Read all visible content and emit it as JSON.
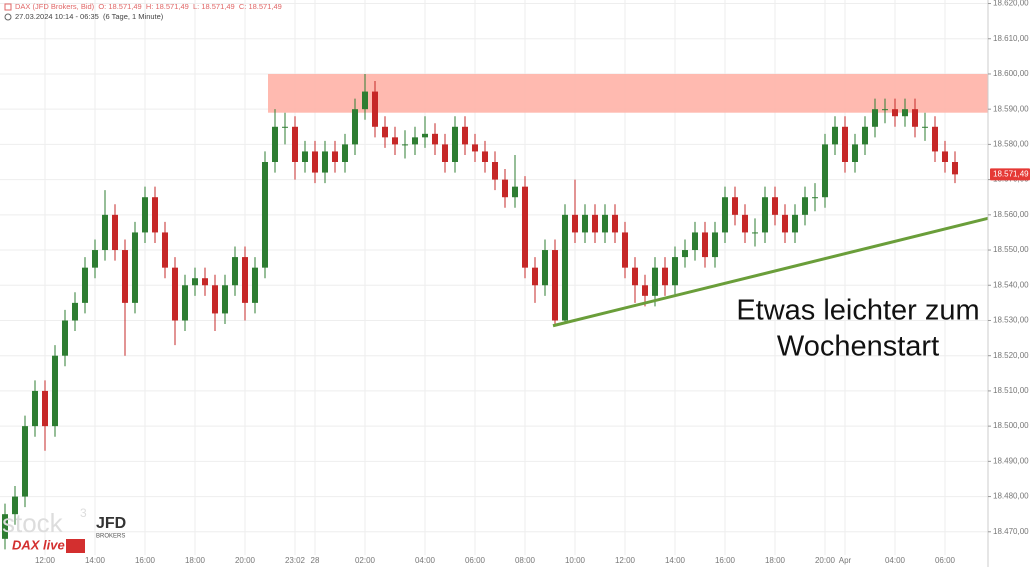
{
  "chart_data": {
    "type": "candlestick",
    "header": {
      "line1": "DAX (JFD Brokers, Bid)  O: 18.571,49  H: 18.571,49  L: 18.571,49  C: 18.571,49",
      "line2": "27.03.2024 10:14 - 06:35  (6 Tage, 1 Minute)"
    },
    "annotation": [
      "Etwas leichter zum",
      "Wochenstart"
    ],
    "logo": {
      "stock": "stock",
      "sup": "3",
      "jfd": "JFD",
      "brokers": "BROKERS",
      "dax_live": "DAX live"
    },
    "last_price": {
      "value": 18571.49,
      "label": "18.571,49"
    },
    "up_color": "#2e7d32",
    "down_color": "#c62828",
    "zone": {
      "from": 18589,
      "to": 18600,
      "start": 26.3,
      "color": "#ffb3a7"
    },
    "trendline": {
      "x": [
        54.8,
        98.3
      ],
      "y": [
        18528.5,
        18559
      ],
      "color": "#6a9e3a"
    },
    "categories": [
      null,
      null,
      null,
      null,
      "12:00",
      null,
      null,
      null,
      null,
      "14:00",
      null,
      null,
      null,
      null,
      "16:00",
      null,
      null,
      null,
      null,
      "18:00",
      null,
      null,
      null,
      null,
      "20:00",
      null,
      null,
      null,
      null,
      "23:02",
      null,
      "28",
      null,
      null,
      null,
      null,
      "02:00",
      null,
      null,
      null,
      null,
      null,
      "04:00",
      null,
      null,
      null,
      null,
      "06:00",
      null,
      null,
      null,
      null,
      "08:00",
      null,
      null,
      null,
      null,
      "10:00",
      null,
      null,
      null,
      null,
      "12:00",
      null,
      null,
      null,
      null,
      "14:00",
      null,
      null,
      null,
      null,
      "16:00",
      null,
      null,
      null,
      null,
      "18:00",
      null,
      null,
      null,
      null,
      "20:00",
      null,
      "Apr",
      null,
      null,
      null,
      null,
      "04:00",
      null,
      null,
      null,
      null,
      "06:00",
      null
    ],
    "open": [
      18468,
      18475,
      18480,
      18500,
      18510,
      18500,
      18520,
      18530,
      18535,
      18545,
      18550,
      18560,
      18550,
      18535,
      18555,
      18565,
      18555,
      18545,
      18530,
      18540,
      18542,
      18540,
      18532,
      18540,
      18548,
      18535,
      18545,
      18575,
      18585,
      18585,
      18575,
      18578,
      18572,
      18578,
      18575,
      18580,
      18590,
      18595,
      18585,
      18582,
      18580,
      18580,
      18582,
      18583,
      18580,
      18575,
      18585,
      18580,
      18578,
      18575,
      18570,
      18565,
      18568,
      18545,
      18540,
      18550,
      18530,
      18560,
      18555,
      18560,
      18555,
      18560,
      18555,
      18545,
      18540,
      18537,
      18545,
      18540,
      18548,
      18550,
      18555,
      18548,
      18555,
      18565,
      18560,
      18555,
      18555,
      18565,
      18560,
      18555,
      18560,
      18565,
      18565,
      18580,
      18585,
      18575,
      18580,
      18585,
      18590,
      18590,
      18588,
      18590,
      18585,
      18585,
      18578,
      18575
    ],
    "high": [
      18478,
      18483,
      18503,
      18513,
      18513,
      18523,
      18533,
      18538,
      18548,
      18553,
      18567,
      18563,
      18553,
      18558,
      18568,
      18568,
      18558,
      18548,
      18543,
      18545,
      18545,
      18543,
      18543,
      18551,
      18551,
      18548,
      18578,
      18590,
      18589,
      18588,
      18581,
      18581,
      18581,
      18581,
      18583,
      18593,
      18600,
      18598,
      18588,
      18585,
      18584,
      18585,
      18588,
      18586,
      18583,
      18588,
      18588,
      18583,
      18581,
      18578,
      18573,
      18577,
      18571,
      18548,
      18553,
      18553,
      18563,
      18570,
      18563,
      18563,
      18563,
      18563,
      18558,
      18548,
      18543,
      18548,
      18548,
      18551,
      18553,
      18558,
      18558,
      18558,
      18568,
      18568,
      18563,
      18559,
      18568,
      18568,
      18563,
      18563,
      18568,
      18569,
      18583,
      18588,
      18588,
      18583,
      18588,
      18593,
      18593,
      18593,
      18593,
      18593,
      18589,
      18588,
      18581,
      18578
    ],
    "low": [
      18465,
      18472,
      18477,
      18497,
      18493,
      18497,
      18517,
      18527,
      18532,
      18542,
      18547,
      18547,
      18520,
      18532,
      18552,
      18552,
      18542,
      18523,
      18527,
      18537,
      18537,
      18527,
      18529,
      18537,
      18530,
      18532,
      18542,
      18572,
      18580,
      18570,
      18572,
      18569,
      18569,
      18572,
      18572,
      18577,
      18587,
      18582,
      18579,
      18577,
      18576,
      18577,
      18579,
      18577,
      18572,
      18572,
      18577,
      18575,
      18572,
      18567,
      18562,
      18562,
      18542,
      18535,
      18537,
      18528.5,
      18529,
      18552,
      18552,
      18552,
      18552,
      18552,
      18542,
      18535,
      18534,
      18534,
      18537,
      18537,
      18545,
      18547,
      18545,
      18545,
      18552,
      18557,
      18552,
      18551,
      18552,
      18557,
      18552,
      18552,
      18557,
      18561,
      18562,
      18577,
      18572,
      18572,
      18577,
      18582,
      18586,
      18585,
      18585,
      18582,
      18581,
      18575,
      18572,
      18569
    ],
    "close": [
      18475,
      18480,
      18500,
      18510,
      18500,
      18520,
      18530,
      18535,
      18545,
      18550,
      18560,
      18550,
      18535,
      18555,
      18565,
      18555,
      18545,
      18530,
      18540,
      18542,
      18540,
      18532,
      18540,
      18548,
      18535,
      18545,
      18575,
      18585,
      18585,
      18575,
      18578,
      18572,
      18578,
      18575,
      18580,
      18590,
      18595,
      18585,
      18582,
      18580,
      18580,
      18582,
      18583,
      18580,
      18575,
      18585,
      18580,
      18578,
      18575,
      18570,
      18565,
      18568,
      18545,
      18540,
      18550,
      18530,
      18560,
      18555,
      18560,
      18555,
      18560,
      18555,
      18545,
      18540,
      18537,
      18545,
      18540,
      18548,
      18550,
      18555,
      18548,
      18555,
      18565,
      18560,
      18555,
      18555,
      18565,
      18560,
      18555,
      18560,
      18565,
      18565,
      18580,
      18585,
      18575,
      18580,
      18585,
      18590,
      18590,
      18588,
      18590,
      18585,
      18585,
      18578,
      18575,
      18571.49
    ],
    "ylim": [
      18460,
      18621
    ],
    "yticks": [
      {
        "value": 18470,
        "label": "18.470,00"
      },
      {
        "value": 18480,
        "label": "18.480,00"
      },
      {
        "value": 18490,
        "label": "18.490,00"
      },
      {
        "value": 18500,
        "label": "18.500,00"
      },
      {
        "value": 18510,
        "label": "18.510,00"
      },
      {
        "value": 18520,
        "label": "18.520,00"
      },
      {
        "value": 18530,
        "label": "18.530,00"
      },
      {
        "value": 18540,
        "label": "18.540,00"
      },
      {
        "value": 18550,
        "label": "18.550,00"
      },
      {
        "value": 18560,
        "label": "18.560,00"
      },
      {
        "value": 18570,
        "label": "18.570,00"
      },
      {
        "value": 18580,
        "label": "18.580,00"
      },
      {
        "value": 18590,
        "label": "18.590,00"
      },
      {
        "value": 18600,
        "label": "18.600,00"
      },
      {
        "value": 18610,
        "label": "18.610,00"
      },
      {
        "value": 18620,
        "label": "18.620,00"
      }
    ],
    "grid": true
  }
}
